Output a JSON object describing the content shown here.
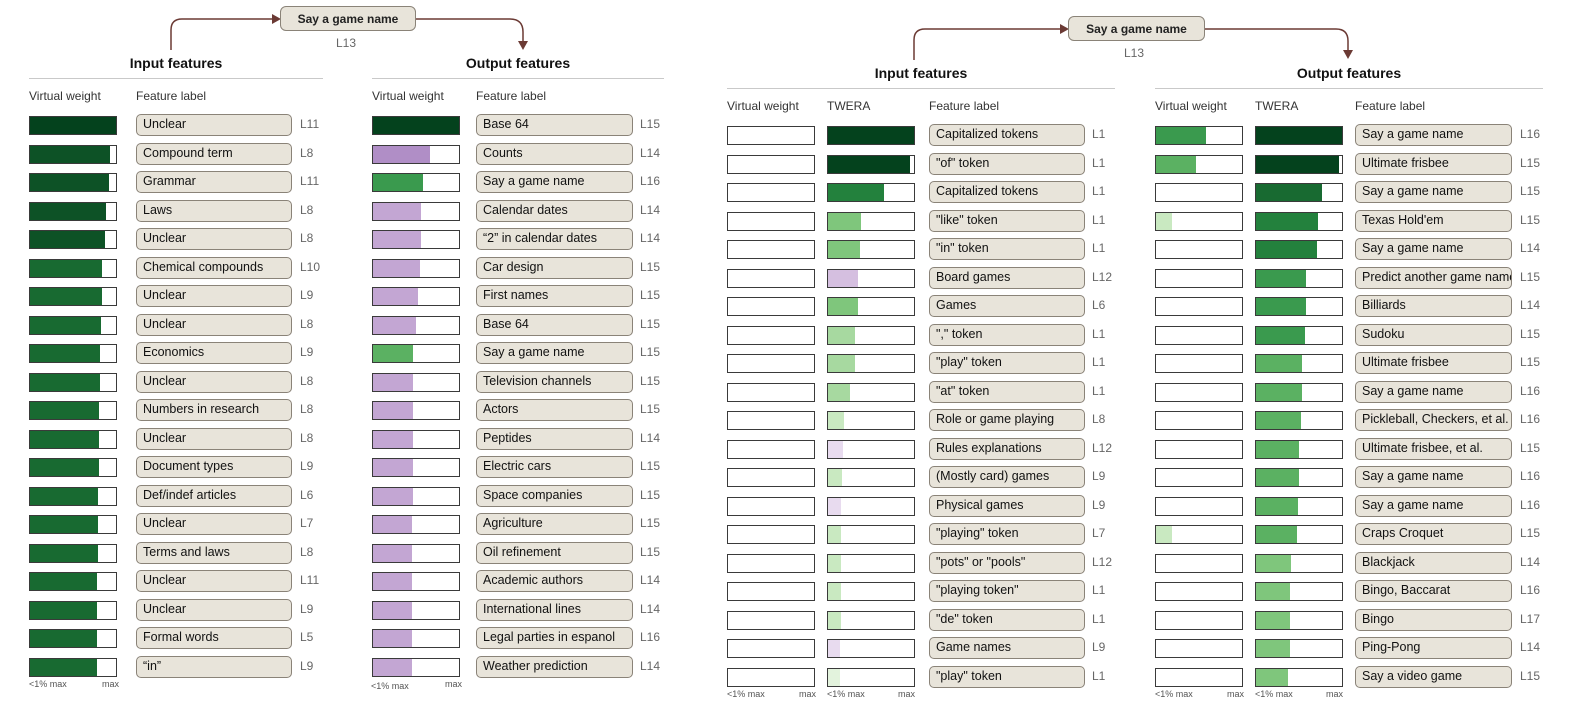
{
  "colors": {
    "green": [
      "#f3faf1",
      "#e3f3dd",
      "#c9e9c1",
      "#a7d9a0",
      "#7fc67c",
      "#5bb162",
      "#3a9a4e",
      "#23813d",
      "#186a31",
      "#0d5226",
      "#04421d"
    ],
    "purple": [
      "#f6f1f8",
      "#e8dbef",
      "#d5bfe0",
      "#c3a6d3",
      "#b08ec6",
      "#9e77bb",
      "#8a57a8"
    ],
    "box_fill": "#e8e4da",
    "box_border": "#8a8378"
  },
  "left": {
    "top_node": {
      "label": "Say a game name",
      "layer": "L13"
    },
    "input": {
      "title": "Input features",
      "col_weight": "Virtual weight",
      "col_label": "Feature label",
      "axis_min": "<1% max",
      "axis_max": "max",
      "rows": [
        {
          "label": "Unclear",
          "layer": "L11",
          "weight": 1.0,
          "color": "green"
        },
        {
          "label": "Compound term",
          "layer": "L8",
          "weight": 0.93,
          "color": "green"
        },
        {
          "label": "Grammar",
          "layer": "L11",
          "weight": 0.92,
          "color": "green"
        },
        {
          "label": "Laws",
          "layer": "L8",
          "weight": 0.88,
          "color": "green"
        },
        {
          "label": "Unclear",
          "layer": "L8",
          "weight": 0.87,
          "color": "green"
        },
        {
          "label": "Chemical compounds",
          "layer": "L10",
          "weight": 0.84,
          "color": "green"
        },
        {
          "label": "Unclear",
          "layer": "L9",
          "weight": 0.84,
          "color": "green"
        },
        {
          "label": "Unclear",
          "layer": "L8",
          "weight": 0.83,
          "color": "green"
        },
        {
          "label": "Economics",
          "layer": "L9",
          "weight": 0.81,
          "color": "green"
        },
        {
          "label": "Unclear",
          "layer": "L8",
          "weight": 0.81,
          "color": "green"
        },
        {
          "label": "Numbers in research",
          "layer": "L8",
          "weight": 0.8,
          "color": "green"
        },
        {
          "label": "Unclear",
          "layer": "L8",
          "weight": 0.8,
          "color": "green"
        },
        {
          "label": "Document types",
          "layer": "L9",
          "weight": 0.8,
          "color": "green"
        },
        {
          "label": "Def/indef articles",
          "layer": "L6",
          "weight": 0.79,
          "color": "green"
        },
        {
          "label": "Unclear",
          "layer": "L7",
          "weight": 0.79,
          "color": "green"
        },
        {
          "label": "Terms and laws",
          "layer": "L8",
          "weight": 0.79,
          "color": "green"
        },
        {
          "label": "Unclear",
          "layer": "L11",
          "weight": 0.78,
          "color": "green"
        },
        {
          "label": "Unclear",
          "layer": "L9",
          "weight": 0.78,
          "color": "green"
        },
        {
          "label": "Formal words",
          "layer": "L5",
          "weight": 0.78,
          "color": "green"
        },
        {
          "label": "“in”",
          "layer": "L9",
          "weight": 0.78,
          "color": "green"
        }
      ]
    },
    "output": {
      "title": "Output features",
      "col_weight": "Virtual weight",
      "col_label": "Feature label",
      "axis_min": "<1% max",
      "axis_max": "max",
      "rows": [
        {
          "label": "Base 64",
          "layer": "L15",
          "weight": 1.0,
          "color": "green"
        },
        {
          "label": "Counts",
          "layer": "L14",
          "weight": 0.66,
          "color": "purple"
        },
        {
          "label": "Say a game name",
          "layer": "L16",
          "weight": 0.58,
          "color": "green"
        },
        {
          "label": "Calendar dates",
          "layer": "L14",
          "weight": 0.56,
          "color": "purple"
        },
        {
          "label": "“2” in calendar dates",
          "layer": "L14",
          "weight": 0.56,
          "color": "purple"
        },
        {
          "label": "Car design",
          "layer": "L15",
          "weight": 0.55,
          "color": "purple"
        },
        {
          "label": "First names",
          "layer": "L15",
          "weight": 0.52,
          "color": "purple"
        },
        {
          "label": "Base 64",
          "layer": "L15",
          "weight": 0.5,
          "color": "purple"
        },
        {
          "label": "Say a game name",
          "layer": "L15",
          "weight": 0.47,
          "color": "green"
        },
        {
          "label": "Television channels",
          "layer": "L15",
          "weight": 0.47,
          "color": "purple"
        },
        {
          "label": "Actors",
          "layer": "L15",
          "weight": 0.47,
          "color": "purple"
        },
        {
          "label": "Peptides",
          "layer": "L14",
          "weight": 0.46,
          "color": "purple"
        },
        {
          "label": "Electric cars",
          "layer": "L15",
          "weight": 0.46,
          "color": "purple"
        },
        {
          "label": "Space companies",
          "layer": "L15",
          "weight": 0.46,
          "color": "purple"
        },
        {
          "label": "Agriculture",
          "layer": "L15",
          "weight": 0.45,
          "color": "purple"
        },
        {
          "label": "Oil refinement",
          "layer": "L15",
          "weight": 0.45,
          "color": "purple"
        },
        {
          "label": "Academic authors",
          "layer": "L14",
          "weight": 0.45,
          "color": "purple"
        },
        {
          "label": "International lines",
          "layer": "L14",
          "weight": 0.45,
          "color": "purple"
        },
        {
          "label": "Legal parties in espanol",
          "layer": "L16",
          "weight": 0.45,
          "color": "purple"
        },
        {
          "label": "Weather prediction",
          "layer": "L14",
          "weight": 0.45,
          "color": "purple"
        }
      ]
    }
  },
  "right": {
    "top_node": {
      "label": "Say a game name",
      "layer": "L13"
    },
    "input": {
      "title": "Input features",
      "col_weight": "Virtual weight",
      "col_twera": "TWERA",
      "col_label": "Feature label",
      "axis_min": "<1% max",
      "axis_max": "max",
      "rows": [
        {
          "label": "Capitalized tokens",
          "layer": "L1",
          "weight": 0,
          "twera": 1.0,
          "twera_color": "green"
        },
        {
          "label": "\"of\" token",
          "layer": "L1",
          "weight": 0,
          "twera": 0.95,
          "twera_color": "green"
        },
        {
          "label": "Capitalized tokens",
          "layer": "L1",
          "weight": 0,
          "twera": 0.65,
          "twera_color": "green"
        },
        {
          "label": "\"like\" token",
          "layer": "L1",
          "weight": 0,
          "twera": 0.38,
          "twera_color": "green"
        },
        {
          "label": "\"in\" token",
          "layer": "L1",
          "weight": 0,
          "twera": 0.37,
          "twera_color": "green"
        },
        {
          "label": "Board games",
          "layer": "L12",
          "weight": 0,
          "twera": 0.35,
          "twera_color": "purple"
        },
        {
          "label": "Games",
          "layer": "L6",
          "weight": 0,
          "twera": 0.35,
          "twera_color": "green"
        },
        {
          "label": "\",\" token",
          "layer": "L1",
          "weight": 0,
          "twera": 0.31,
          "twera_color": "green"
        },
        {
          "label": "\"play\" token",
          "layer": "L1",
          "weight": 0,
          "twera": 0.31,
          "twera_color": "green"
        },
        {
          "label": "\"at\" token",
          "layer": "L1",
          "weight": 0,
          "twera": 0.26,
          "twera_color": "green"
        },
        {
          "label": "Role or game playing",
          "layer": "L8",
          "weight": 0,
          "twera": 0.19,
          "twera_color": "green"
        },
        {
          "label": "Rules explanations",
          "layer": "L12",
          "weight": 0,
          "twera": 0.17,
          "twera_color": "purple"
        },
        {
          "label": "(Mostly card) games",
          "layer": "L9",
          "weight": 0,
          "twera": 0.16,
          "twera_color": "green"
        },
        {
          "label": "Physical games",
          "layer": "L9",
          "weight": 0,
          "twera": 0.15,
          "twera_color": "purple"
        },
        {
          "label": "\"playing\" token",
          "layer": "L7",
          "weight": 0,
          "twera": 0.15,
          "twera_color": "green"
        },
        {
          "label": "\"pots\" or \"pools\"",
          "layer": "L12",
          "weight": 0,
          "twera": 0.15,
          "twera_color": "green"
        },
        {
          "label": "\"playing token\"",
          "layer": "L1",
          "weight": 0,
          "twera": 0.15,
          "twera_color": "green"
        },
        {
          "label": "\"de\" token",
          "layer": "L1",
          "weight": 0,
          "twera": 0.15,
          "twera_color": "green"
        },
        {
          "label": "Game names",
          "layer": "L9",
          "weight": 0,
          "twera": 0.14,
          "twera_color": "purple"
        },
        {
          "label": "\"play\" token",
          "layer": "L1",
          "weight": 0,
          "twera": 0.14,
          "twera_color": "green"
        }
      ]
    },
    "output": {
      "title": "Output features",
      "col_weight": "Virtual weight",
      "col_twera": "TWERA",
      "col_label": "Feature label",
      "axis_min": "<1% max",
      "axis_max": "max",
      "rows": [
        {
          "label": "Say a game name",
          "layer": "L16",
          "weight": 0.58,
          "twera": 1.0
        },
        {
          "label": "Ultimate frisbee",
          "layer": "L15",
          "weight": 0.47,
          "twera": 0.96
        },
        {
          "label": "Say a game name",
          "layer": "L15",
          "weight": 0,
          "twera": 0.77
        },
        {
          "label": "Texas Hold'em",
          "layer": "L15",
          "weight": 0.19,
          "twera": 0.72
        },
        {
          "label": "Say a game name",
          "layer": "L14",
          "weight": 0,
          "twera": 0.71
        },
        {
          "label": "Predict another game name",
          "layer": "L15",
          "weight": 0,
          "twera": 0.58
        },
        {
          "label": "Billiards",
          "layer": "L14",
          "weight": 0,
          "twera": 0.58
        },
        {
          "label": "Sudoku",
          "layer": "L15",
          "weight": 0,
          "twera": 0.57
        },
        {
          "label": "Ultimate frisbee",
          "layer": "L15",
          "weight": 0,
          "twera": 0.54
        },
        {
          "label": "Say a game name",
          "layer": "L16",
          "weight": 0,
          "twera": 0.53
        },
        {
          "label": "Pickleball, Checkers, et al.",
          "layer": "L16",
          "weight": 0,
          "twera": 0.52
        },
        {
          "label": "Ultimate frisbee, et al.",
          "layer": "L15",
          "weight": 0,
          "twera": 0.5
        },
        {
          "label": "Say a game name",
          "layer": "L16",
          "weight": 0,
          "twera": 0.5
        },
        {
          "label": "Say a game name",
          "layer": "L16",
          "weight": 0,
          "twera": 0.49
        },
        {
          "label": "Craps Croquet",
          "layer": "L15",
          "weight": 0.19,
          "twera": 0.48
        },
        {
          "label": "Blackjack",
          "layer": "L14",
          "weight": 0,
          "twera": 0.41
        },
        {
          "label": "Bingo, Baccarat",
          "layer": "L16",
          "weight": 0,
          "twera": 0.4
        },
        {
          "label": "Bingo",
          "layer": "L17",
          "weight": 0,
          "twera": 0.39
        },
        {
          "label": "Ping-Pong",
          "layer": "L14",
          "weight": 0,
          "twera": 0.39
        },
        {
          "label": "Say a video game",
          "layer": "L15",
          "weight": 0,
          "twera": 0.37
        }
      ]
    }
  }
}
